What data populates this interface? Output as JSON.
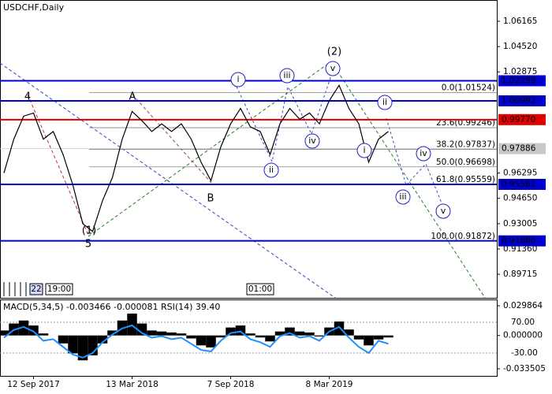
{
  "chart_data": [
    {
      "type": "line",
      "title": "USDCHF,Daily",
      "categories": [
        null,
        null,
        null,
        "12 Sep 2017",
        null,
        null,
        null,
        null,
        null,
        null,
        null,
        null,
        null,
        "13 Mar 2018",
        null,
        null,
        null,
        null,
        null,
        null,
        null,
        null,
        null,
        "7 Sep 2018",
        null,
        null,
        null,
        null,
        null,
        null,
        null,
        null,
        null,
        "8 Mar 2019",
        null,
        null,
        null,
        null,
        null,
        null
      ],
      "series": [
        {
          "color": "#000000",
          "values": [
            0.963,
            0.985,
            1.0,
            1.002,
            0.985,
            0.99,
            0.975,
            0.955,
            0.93,
            0.925,
            0.945,
            0.96,
            0.985,
            1.003,
            0.997,
            0.99,
            0.995,
            0.99,
            0.995,
            0.985,
            0.97,
            0.958,
            0.98,
            0.995,
            1.005,
            0.993,
            0.99,
            0.975,
            0.995,
            1.005,
            0.998,
            1.002,
            0.995,
            1.01,
            1.02,
            1.005,
            0.995,
            0.97,
            0.985,
            0.99
          ]
        }
      ],
      "ylim": [
        0.8818,
        1.0755
      ],
      "yticks": [
        1.06165,
        {
          "value": 1.0452,
          "label": "1.04520"
        },
        1.02875,
        0.96295,
        {
          "value": 0.9465,
          "label": "0.94650"
        },
        0.93005,
        {
          "value": 0.9136,
          "label": "0.91360"
        },
        0.89715
      ],
      "levels": {
        "values": [
          1.02299,
          1.00992,
          0.9977,
          0.97886,
          0.95561,
          0.91886
        ],
        "value_labels": [
          "1.02299",
          "1.00992",
          "0.99770",
          "0.97886",
          "0.95561",
          "0.91886"
        ],
        "colors": [
          "#0000cc",
          "#0000cc",
          "#e00000",
          "#c8c8c8",
          "#0000cc",
          "#0000cc"
        ]
      },
      "fibonacci": {
        "values": [
          1.01524,
          0.99246,
          0.97837,
          0.96698,
          0.95559,
          0.91872
        ],
        "value_labels": [
          "0.0(1.01524)",
          "23.6(0.99246)",
          "38.2(0.97837)",
          "50.0(0.96698)",
          "61.8(0.95559)",
          "100.0(0.91872)"
        ],
        "color": "#808080"
      },
      "wave_labels": [
        "4",
        "5",
        "A",
        "B",
        "(1)",
        "(2)",
        "i",
        "iii",
        "v",
        "ii",
        "iv",
        "ii",
        "i",
        "iii",
        "iv",
        "v"
      ],
      "time_labels": [
        "22",
        "19:00",
        "01:00"
      ]
    },
    {
      "type": "bar",
      "title": "MACD(5,34,5) -0.003466 -0.000081 RSI(14) 39.40",
      "series": [
        {
          "color": "#000000",
          "values": [
            0.005,
            0.012,
            0.015,
            0.01,
            0.002,
            0.0,
            -0.008,
            -0.018,
            -0.025,
            -0.02,
            -0.008,
            0.005,
            0.015,
            0.022,
            0.012,
            0.005,
            0.004,
            0.003,
            0.002,
            -0.003,
            -0.01,
            -0.012,
            -0.002,
            0.008,
            0.01,
            0.002,
            -0.002,
            -0.006,
            0.004,
            0.008,
            0.004,
            0.003,
            -0.001,
            0.008,
            0.014,
            0.006,
            -0.004,
            -0.01,
            -0.004,
            -0.002
          ]
        },
        {
          "color": "#1e90ff",
          "axis": "y2",
          "values": [
            20,
            45,
            55,
            40,
            10,
            15,
            -10,
            -35,
            -45,
            -30,
            5,
            30,
            50,
            60,
            35,
            20,
            25,
            15,
            20,
            0,
            -20,
            -25,
            10,
            35,
            40,
            15,
            5,
            -10,
            25,
            35,
            20,
            25,
            10,
            40,
            55,
            20,
            -10,
            -30,
            10,
            0
          ]
        }
      ],
      "ylim": [
        -0.040633,
        0.0362
      ],
      "yticks": [
        0.029864,
        {
          "value": 0,
          "label": "0.000000"
        },
        -0.033505
      ],
      "y2lim": [
        -104.4,
        144.4
      ],
      "y2ticks": [
        {
          "value": 70,
          "label": "70.00"
        },
        {
          "value": -30,
          "label": "-30.00"
        }
      ],
      "grid": true
    }
  ]
}
